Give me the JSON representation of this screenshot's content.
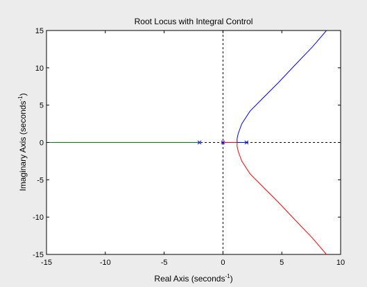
{
  "chart_data": {
    "type": "line",
    "title": "Root Locus with Integral Control",
    "xlabel": {
      "main": "Real Axis (seconds",
      "sup": "-1",
      "close": ")"
    },
    "ylabel": {
      "main": "Imaginary Axis (seconds",
      "sup": "-1",
      "close": ")"
    },
    "xlim": [
      -15,
      10
    ],
    "ylim": [
      -15,
      15
    ],
    "xticks": [
      -15,
      -10,
      -5,
      0,
      5,
      10
    ],
    "yticks": [
      -15,
      -10,
      -5,
      0,
      5,
      10,
      15
    ],
    "xtick_labels": [
      "-15",
      "-10",
      "-5",
      "0",
      "5",
      "10"
    ],
    "ytick_labels": [
      "-15",
      "-10",
      "-5",
      "0",
      "5",
      "10",
      "15"
    ],
    "grid": false,
    "reference_lines": [
      "x=0",
      "y=0"
    ],
    "poles": [
      {
        "x": -2,
        "y": 0
      },
      {
        "x": 0,
        "y": 0
      },
      {
        "x": 2,
        "y": 0
      }
    ],
    "series": [
      {
        "color": "#008000",
        "x": [
          -15,
          -12,
          -9,
          -6,
          -4,
          -2
        ],
        "y": [
          0,
          0,
          0,
          0,
          0,
          0
        ]
      },
      {
        "color": "#ff0000",
        "x": [
          0,
          0.5,
          1.0,
          1.2
        ],
        "y": [
          0,
          0,
          0,
          0
        ]
      },
      {
        "color": "#0000ff",
        "x": [
          2,
          1.6,
          1.3,
          1.2
        ],
        "y": [
          0,
          0,
          0,
          0
        ]
      },
      {
        "color": "#0000ff",
        "x": [
          1.2,
          1.2,
          1.3,
          1.6,
          2.3,
          3.3,
          4.7,
          6.2,
          7.6,
          8.8
        ],
        "y": [
          0,
          0.5,
          1.2,
          2.5,
          4.2,
          5.8,
          8.0,
          10.5,
          12.8,
          15
        ]
      },
      {
        "color": "#ff0000",
        "x": [
          1.2,
          1.2,
          1.3,
          1.6,
          2.3,
          3.3,
          4.7,
          6.2,
          7.6,
          8.8
        ],
        "y": [
          0,
          -0.5,
          -1.2,
          -2.5,
          -4.2,
          -5.8,
          -8.0,
          -10.5,
          -12.8,
          -15
        ]
      }
    ]
  }
}
